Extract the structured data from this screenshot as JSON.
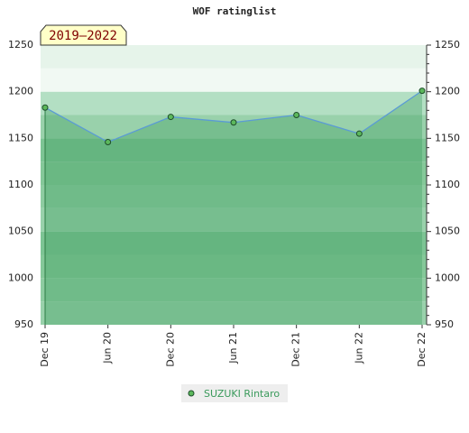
{
  "chart_data": {
    "type": "area",
    "title": "WOF ratinglist",
    "annotation": "2019–2022",
    "categories": [
      "Dec 19",
      "Jun 20",
      "Dec 20",
      "Jun 21",
      "Dec 21",
      "Jun 22",
      "Dec 22"
    ],
    "series": [
      {
        "name": "SUZUKI Rintaro",
        "color": "#3a9a5b",
        "line_color": "#5b9bd5",
        "values": [
          1183,
          1146,
          1173,
          1167,
          1175,
          1155,
          1201
        ]
      }
    ],
    "ylim": [
      950,
      1250
    ],
    "yticks": [
      950,
      1000,
      1050,
      1100,
      1150,
      1200,
      1250
    ],
    "grid": false
  }
}
